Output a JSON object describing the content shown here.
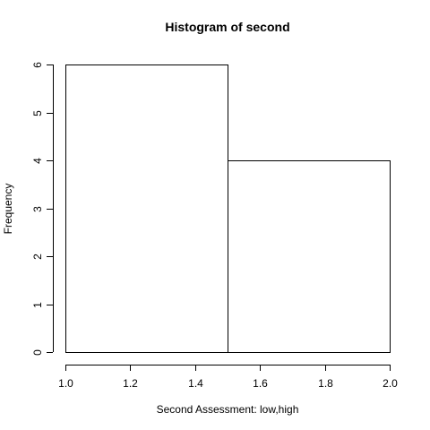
{
  "chart_data": {
    "type": "bar",
    "title": "Histogram of second",
    "xlabel": "Second Assessment: low,high",
    "ylabel": "Frequency",
    "bins": [
      {
        "x0": 1.0,
        "x1": 1.5,
        "count": 6
      },
      {
        "x0": 1.5,
        "x1": 2.0,
        "count": 4
      }
    ],
    "xlim": [
      1.0,
      2.0
    ],
    "ylim": [
      0,
      6
    ],
    "xticks": [
      1.0,
      1.2,
      1.4,
      1.6,
      1.8,
      2.0
    ],
    "xtick_labels": [
      "1.0",
      "1.2",
      "1.4",
      "1.6",
      "1.8",
      "2.0"
    ],
    "yticks": [
      0,
      1,
      2,
      3,
      4,
      5,
      6
    ],
    "ytick_labels": [
      "0",
      "1",
      "2",
      "3",
      "4",
      "5",
      "6"
    ],
    "grid": false
  }
}
